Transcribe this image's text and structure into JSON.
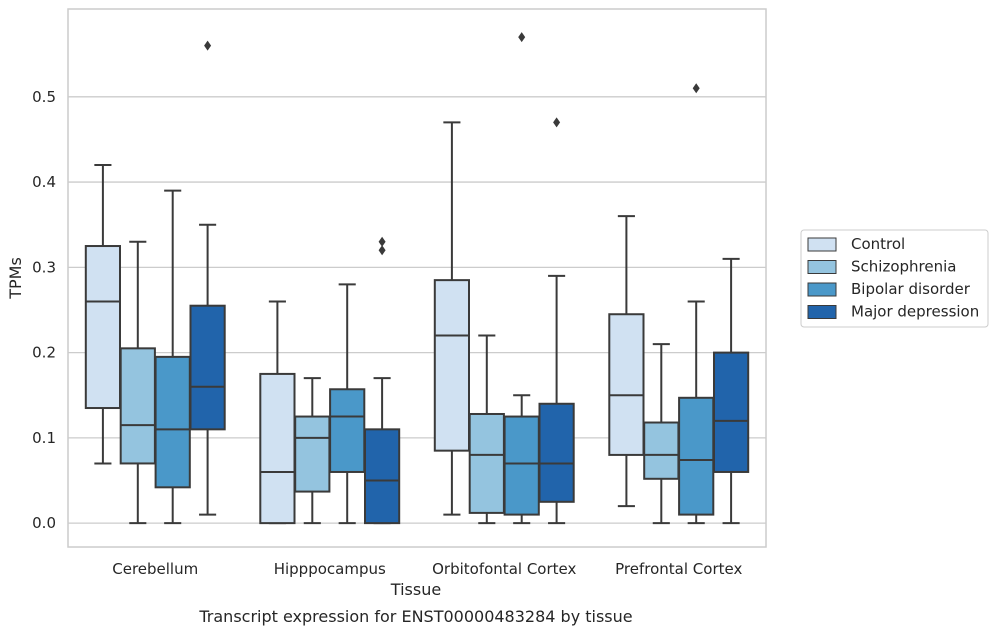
{
  "chart_data": {
    "type": "boxplot",
    "xlabel": "Tissue",
    "ylabel": "TPMs",
    "caption": "Transcript expression for ENST00000483284 by tissue",
    "ylim": [
      -0.028,
      0.603
    ],
    "yticks": [
      0.0,
      0.1,
      0.2,
      0.3,
      0.4,
      0.5
    ],
    "ytick_labels": [
      "0.0",
      "0.1",
      "0.2",
      "0.3",
      "0.4",
      "0.5"
    ],
    "grid": "horizontal",
    "legend_position": "right",
    "categories": [
      "Cerebellum",
      "Hipppocampus",
      "Orbitofontal Cortex",
      "Prefrontal Cortex"
    ],
    "series": [
      {
        "name": "Control",
        "color": "#d0e1f2",
        "boxes": [
          {
            "whislo": 0.07,
            "q1": 0.135,
            "med": 0.26,
            "q3": 0.325,
            "whishi": 0.42,
            "fliers": []
          },
          {
            "whislo": 0.0,
            "q1": 0.0,
            "med": 0.06,
            "q3": 0.175,
            "whishi": 0.26,
            "fliers": []
          },
          {
            "whislo": 0.01,
            "q1": 0.085,
            "med": 0.22,
            "q3": 0.285,
            "whishi": 0.47,
            "fliers": []
          },
          {
            "whislo": 0.02,
            "q1": 0.08,
            "med": 0.15,
            "q3": 0.245,
            "whishi": 0.36,
            "fliers": []
          }
        ]
      },
      {
        "name": "Schizophrenia",
        "color": "#94c4df",
        "boxes": [
          {
            "whislo": 0.0,
            "q1": 0.07,
            "med": 0.115,
            "q3": 0.205,
            "whishi": 0.33,
            "fliers": []
          },
          {
            "whislo": 0.0,
            "q1": 0.037,
            "med": 0.1,
            "q3": 0.125,
            "whishi": 0.17,
            "fliers": []
          },
          {
            "whislo": 0.0,
            "q1": 0.012,
            "med": 0.08,
            "q3": 0.128,
            "whishi": 0.22,
            "fliers": []
          },
          {
            "whislo": 0.0,
            "q1": 0.052,
            "med": 0.08,
            "q3": 0.118,
            "whishi": 0.21,
            "fliers": []
          }
        ]
      },
      {
        "name": "Bipolar disorder",
        "color": "#4a98c9",
        "boxes": [
          {
            "whislo": 0.0,
            "q1": 0.042,
            "med": 0.11,
            "q3": 0.195,
            "whishi": 0.39,
            "fliers": []
          },
          {
            "whislo": 0.0,
            "q1": 0.06,
            "med": 0.125,
            "q3": 0.157,
            "whishi": 0.28,
            "fliers": []
          },
          {
            "whislo": 0.0,
            "q1": 0.01,
            "med": 0.07,
            "q3": 0.125,
            "whishi": 0.15,
            "fliers": [
              0.57
            ]
          },
          {
            "whislo": 0.0,
            "q1": 0.01,
            "med": 0.074,
            "q3": 0.147,
            "whishi": 0.26,
            "fliers": [
              0.51
            ]
          }
        ]
      },
      {
        "name": "Major depression",
        "color": "#2164ab",
        "boxes": [
          {
            "whislo": 0.01,
            "q1": 0.11,
            "med": 0.16,
            "q3": 0.255,
            "whishi": 0.35,
            "fliers": [
              0.56
            ]
          },
          {
            "whislo": 0.0,
            "q1": 0.0,
            "med": 0.05,
            "q3": 0.11,
            "whishi": 0.17,
            "fliers": [
              0.32,
              0.33
            ]
          },
          {
            "whislo": 0.0,
            "q1": 0.025,
            "med": 0.07,
            "q3": 0.14,
            "whishi": 0.29,
            "fliers": [
              0.47
            ]
          },
          {
            "whislo": 0.0,
            "q1": 0.06,
            "med": 0.12,
            "q3": 0.2,
            "whishi": 0.31,
            "fliers": []
          }
        ]
      }
    ]
  }
}
